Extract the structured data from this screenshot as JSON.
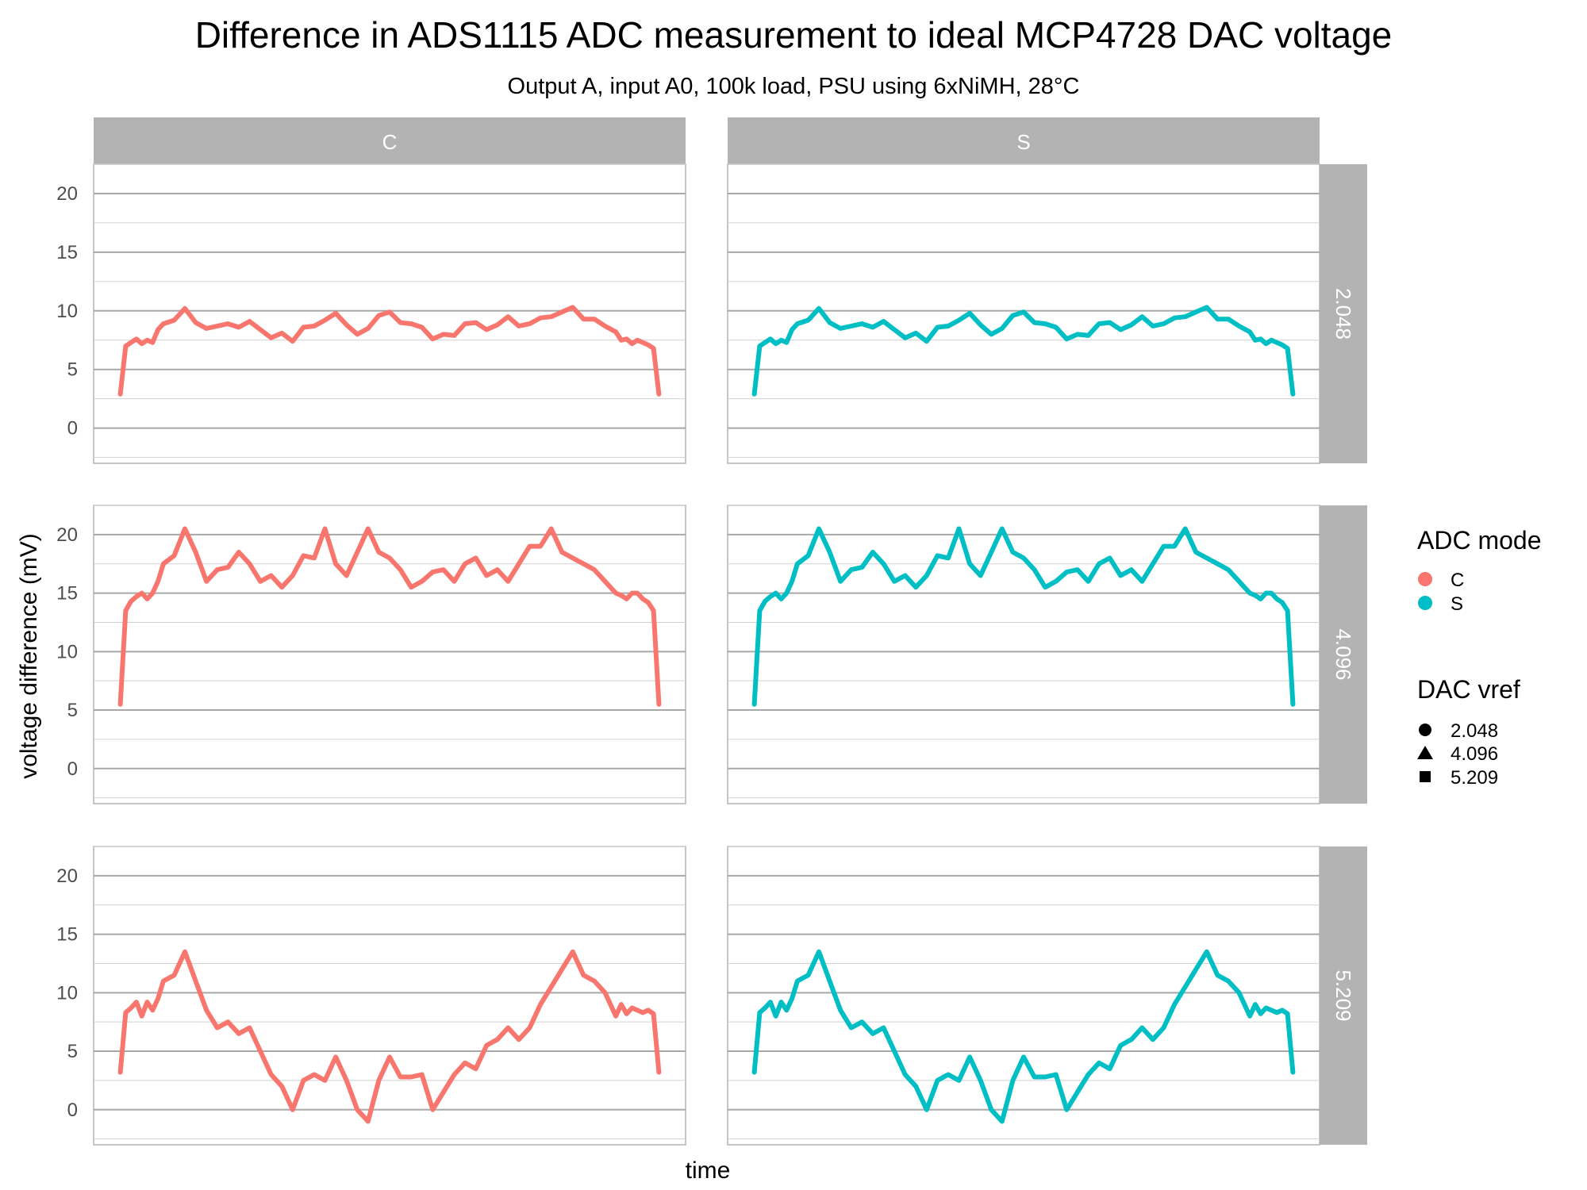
{
  "title": "Difference in ADS1115 ADC measurement to ideal MCP4728 DAC voltage",
  "subtitle": "Output A, input A0, 100k load, PSU using 6xNiMH, 28°C",
  "chart_data": {
    "type": "line",
    "xlabel": "time",
    "ylabel": "voltage difference (mV)",
    "ylim": [
      -3,
      22.5
    ],
    "yticks": [
      0,
      5,
      10,
      15,
      20
    ],
    "grid": true,
    "facet_columns": [
      "C",
      "S"
    ],
    "facet_rows": [
      "2.048",
      "4.096",
      "5.209"
    ],
    "legend": {
      "position": "right",
      "color_title": "ADC mode",
      "color_entries": [
        {
          "label": "C",
          "color": "#F8766D"
        },
        {
          "label": "S",
          "color": "#00BFC4"
        }
      ],
      "shape_title": "DAC vref",
      "shape_entries": [
        {
          "label": "2.048",
          "shape": "circle"
        },
        {
          "label": "4.096",
          "shape": "triangle"
        },
        {
          "label": "5.209",
          "shape": "square"
        }
      ]
    },
    "x": [
      0,
      0.01,
      0.02,
      0.03,
      0.04,
      0.05,
      0.06,
      0.07,
      0.08,
      0.1,
      0.12,
      0.14,
      0.16,
      0.18,
      0.2,
      0.22,
      0.24,
      0.26,
      0.28,
      0.3,
      0.32,
      0.34,
      0.36,
      0.38,
      0.4,
      0.42,
      0.44,
      0.46,
      0.48,
      0.5,
      0.52,
      0.54,
      0.56,
      0.58,
      0.6,
      0.62,
      0.64,
      0.66,
      0.68,
      0.7,
      0.72,
      0.74,
      0.76,
      0.78,
      0.8,
      0.82,
      0.84,
      0.86,
      0.88,
      0.9,
      0.92,
      0.93,
      0.94,
      0.95,
      0.96,
      0.97,
      0.98,
      0.99,
      1.0
    ],
    "series": [
      {
        "vref": "2.048",
        "mode": "C",
        "color": "#F8766D",
        "values": [
          2.9,
          7.0,
          7.3,
          7.6,
          7.2,
          7.5,
          7.3,
          8.4,
          8.9,
          9.2,
          10.2,
          9.0,
          8.5,
          8.7,
          8.9,
          8.6,
          9.1,
          8.4,
          7.7,
          8.1,
          7.4,
          8.6,
          8.7,
          9.2,
          9.8,
          8.8,
          8.0,
          8.5,
          9.6,
          9.9,
          9.0,
          8.9,
          8.6,
          7.6,
          8.0,
          7.9,
          8.9,
          9.0,
          8.4,
          8.8,
          9.5,
          8.7,
          8.9,
          9.4,
          9.5,
          9.9,
          10.3,
          9.3,
          9.3,
          8.7,
          8.2,
          7.5,
          7.6,
          7.2,
          7.5,
          7.3,
          7.1,
          6.8,
          2.9
        ]
      },
      {
        "vref": "2.048",
        "mode": "S",
        "color": "#00BFC4",
        "values": [
          2.9,
          7.0,
          7.3,
          7.6,
          7.2,
          7.5,
          7.3,
          8.4,
          8.9,
          9.2,
          10.2,
          9.0,
          8.5,
          8.7,
          8.9,
          8.6,
          9.1,
          8.4,
          7.7,
          8.1,
          7.4,
          8.6,
          8.7,
          9.2,
          9.8,
          8.8,
          8.0,
          8.5,
          9.6,
          9.9,
          9.0,
          8.9,
          8.6,
          7.6,
          8.0,
          7.9,
          8.9,
          9.0,
          8.4,
          8.8,
          9.5,
          8.7,
          8.9,
          9.4,
          9.5,
          9.9,
          10.3,
          9.3,
          9.3,
          8.7,
          8.2,
          7.5,
          7.6,
          7.2,
          7.5,
          7.3,
          7.1,
          6.8,
          2.9
        ]
      },
      {
        "vref": "4.096",
        "mode": "C",
        "color": "#F8766D",
        "values": [
          5.5,
          13.5,
          14.3,
          14.7,
          15.0,
          14.5,
          15.0,
          16.0,
          17.5,
          18.2,
          20.5,
          18.5,
          16.0,
          17.0,
          17.2,
          18.5,
          17.5,
          16.0,
          16.5,
          15.5,
          16.5,
          18.2,
          18.0,
          20.5,
          17.5,
          16.5,
          18.5,
          20.5,
          18.5,
          18.0,
          17.0,
          15.5,
          16.0,
          16.8,
          17.0,
          16.0,
          17.5,
          18.0,
          16.5,
          17.0,
          16.0,
          17.5,
          19.0,
          19.0,
          20.5,
          18.5,
          18.0,
          17.5,
          17.0,
          16.0,
          15.0,
          14.8,
          14.5,
          15.0,
          15.0,
          14.5,
          14.2,
          13.5,
          5.5
        ]
      },
      {
        "vref": "4.096",
        "mode": "S",
        "color": "#00BFC4",
        "values": [
          5.5,
          13.5,
          14.3,
          14.7,
          15.0,
          14.5,
          15.0,
          16.0,
          17.5,
          18.2,
          20.5,
          18.5,
          16.0,
          17.0,
          17.2,
          18.5,
          17.5,
          16.0,
          16.5,
          15.5,
          16.5,
          18.2,
          18.0,
          20.5,
          17.5,
          16.5,
          18.5,
          20.5,
          18.5,
          18.0,
          17.0,
          15.5,
          16.0,
          16.8,
          17.0,
          16.0,
          17.5,
          18.0,
          16.5,
          17.0,
          16.0,
          17.5,
          19.0,
          19.0,
          20.5,
          18.5,
          18.0,
          17.5,
          17.0,
          16.0,
          15.0,
          14.8,
          14.5,
          15.0,
          15.0,
          14.5,
          14.2,
          13.5,
          5.5
        ]
      },
      {
        "vref": "5.209",
        "mode": "C",
        "color": "#F8766D",
        "values": [
          3.2,
          8.3,
          8.7,
          9.2,
          8.0,
          9.2,
          8.5,
          9.5,
          11.0,
          11.5,
          13.5,
          11.0,
          8.5,
          7.0,
          7.5,
          6.5,
          7.0,
          5.0,
          3.0,
          2.0,
          0.0,
          2.5,
          3.0,
          2.5,
          4.5,
          2.5,
          0.0,
          -1.0,
          2.5,
          4.5,
          2.8,
          2.8,
          3.0,
          0.0,
          1.5,
          3.0,
          4.0,
          3.5,
          5.5,
          6.0,
          7.0,
          6.0,
          7.0,
          9.0,
          10.5,
          12.0,
          13.5,
          11.5,
          11.0,
          10.0,
          8.0,
          9.0,
          8.2,
          8.7,
          8.5,
          8.3,
          8.5,
          8.2,
          3.2
        ]
      },
      {
        "vref": "5.209",
        "mode": "S",
        "color": "#00BFC4",
        "values": [
          3.2,
          8.3,
          8.7,
          9.2,
          8.0,
          9.2,
          8.5,
          9.5,
          11.0,
          11.5,
          13.5,
          11.0,
          8.5,
          7.0,
          7.5,
          6.5,
          7.0,
          5.0,
          3.0,
          2.0,
          0.0,
          2.5,
          3.0,
          2.5,
          4.5,
          2.5,
          0.0,
          -1.0,
          2.5,
          4.5,
          2.8,
          2.8,
          3.0,
          0.0,
          1.5,
          3.0,
          4.0,
          3.5,
          5.5,
          6.0,
          7.0,
          6.0,
          7.0,
          9.0,
          10.5,
          12.0,
          13.5,
          11.5,
          11.0,
          10.0,
          8.0,
          9.0,
          8.2,
          8.7,
          8.5,
          8.3,
          8.5,
          8.2,
          3.2
        ]
      }
    ]
  }
}
